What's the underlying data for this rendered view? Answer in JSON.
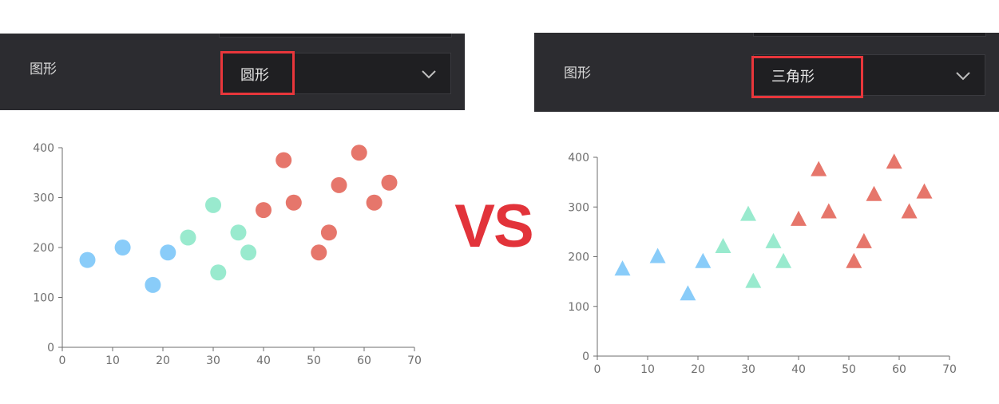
{
  "colors": {
    "panel_bg": "#2c2c30",
    "select_bg": "#1f1f22",
    "highlight": "#e8363b",
    "vs_text": "#e2333a",
    "series": [
      "#7cc6f8",
      "#8ee8c9",
      "#e3675b"
    ]
  },
  "vs_text": "VS",
  "panels": [
    {
      "label": "图形",
      "selected": "圆形",
      "icon": "chevron-down-icon"
    },
    {
      "label": "图形",
      "selected": "三角形",
      "icon": "chevron-down-icon"
    }
  ],
  "chart_data": [
    {
      "type": "scatter",
      "marker": "circle",
      "xlim": [
        0,
        70
      ],
      "ylim": [
        0,
        400
      ],
      "x_ticks": [
        "0",
        "10",
        "20",
        "30",
        "40",
        "50",
        "60",
        "70"
      ],
      "y_ticks": [
        "0",
        "100",
        "200",
        "300",
        "400"
      ],
      "grid": false,
      "series": [
        {
          "color": "#7cc6f8",
          "points": [
            [
              5,
              175
            ],
            [
              12,
              200
            ],
            [
              18,
              125
            ],
            [
              21,
              190
            ]
          ]
        },
        {
          "color": "#8ee8c9",
          "points": [
            [
              25,
              220
            ],
            [
              30,
              285
            ],
            [
              31,
              150
            ],
            [
              35,
              230
            ],
            [
              37,
              190
            ]
          ]
        },
        {
          "color": "#e3675b",
          "points": [
            [
              40,
              275
            ],
            [
              44,
              375
            ],
            [
              46,
              290
            ],
            [
              51,
              190
            ],
            [
              53,
              230
            ],
            [
              55,
              325
            ],
            [
              59,
              390
            ],
            [
              62,
              290
            ],
            [
              65,
              330
            ]
          ]
        }
      ]
    },
    {
      "type": "scatter",
      "marker": "triangle",
      "xlim": [
        0,
        70
      ],
      "ylim": [
        0,
        400
      ],
      "x_ticks": [
        "0",
        "10",
        "20",
        "30",
        "40",
        "50",
        "60",
        "70"
      ],
      "y_ticks": [
        "0",
        "100",
        "200",
        "300",
        "400"
      ],
      "grid": false,
      "series": [
        {
          "color": "#7cc6f8",
          "points": [
            [
              5,
              175
            ],
            [
              12,
              200
            ],
            [
              18,
              125
            ],
            [
              21,
              190
            ]
          ]
        },
        {
          "color": "#8ee8c9",
          "points": [
            [
              25,
              220
            ],
            [
              30,
              285
            ],
            [
              31,
              150
            ],
            [
              35,
              230
            ],
            [
              37,
              190
            ]
          ]
        },
        {
          "color": "#e3675b",
          "points": [
            [
              40,
              275
            ],
            [
              44,
              375
            ],
            [
              46,
              290
            ],
            [
              51,
              190
            ],
            [
              53,
              230
            ],
            [
              55,
              325
            ],
            [
              59,
              390
            ],
            [
              62,
              290
            ],
            [
              65,
              330
            ]
          ]
        }
      ]
    }
  ]
}
